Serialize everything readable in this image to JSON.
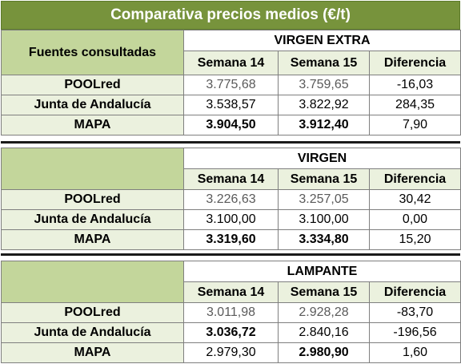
{
  "title": "Comparativa precios medios (€/t)",
  "sources_header": "Fuentes consultadas",
  "columns": {
    "w14": "Semana 14",
    "w15": "Semana 15",
    "diff": "Diferencia"
  },
  "colors": {
    "title_bg": "#77933c",
    "header_bg": "#c3d69b",
    "row_bg": "#ebf1de"
  },
  "sections": [
    {
      "name": "VIRGEN EXTRA",
      "rows": [
        {
          "source": "POOLred",
          "w14": "3.775,68",
          "w15": "3.759,65",
          "diff": "-16,03"
        },
        {
          "source": "Junta de Andalucía",
          "w14": "3.538,57",
          "w15": "3.822,92",
          "diff": "284,35"
        },
        {
          "source": "MAPA",
          "w14": "3.904,50",
          "w15": "3.912,40",
          "diff": "7,90"
        }
      ]
    },
    {
      "name": "VIRGEN",
      "rows": [
        {
          "source": "POOLred",
          "w14": "3.226,63",
          "w15": "3.257,05",
          "diff": "30,42"
        },
        {
          "source": "Junta de Andalucía",
          "w14": "3.100,00",
          "w15": "3.100,00",
          "diff": "0,00"
        },
        {
          "source": "MAPA",
          "w14": "3.319,60",
          "w15": "3.334,80",
          "diff": "15,20"
        }
      ]
    },
    {
      "name": "LAMPANTE",
      "rows": [
        {
          "source": "POOLred",
          "w14": "3.011,98",
          "w15": "2.928,28",
          "diff": "-83,70"
        },
        {
          "source": "Junta de Andalucía",
          "w14": "3.036,72",
          "w15": "2.840,16",
          "diff": "-196,56"
        },
        {
          "source": "MAPA",
          "w14": "2.979,30",
          "w15": "2.980,90",
          "diff": "1,60"
        }
      ]
    }
  ]
}
